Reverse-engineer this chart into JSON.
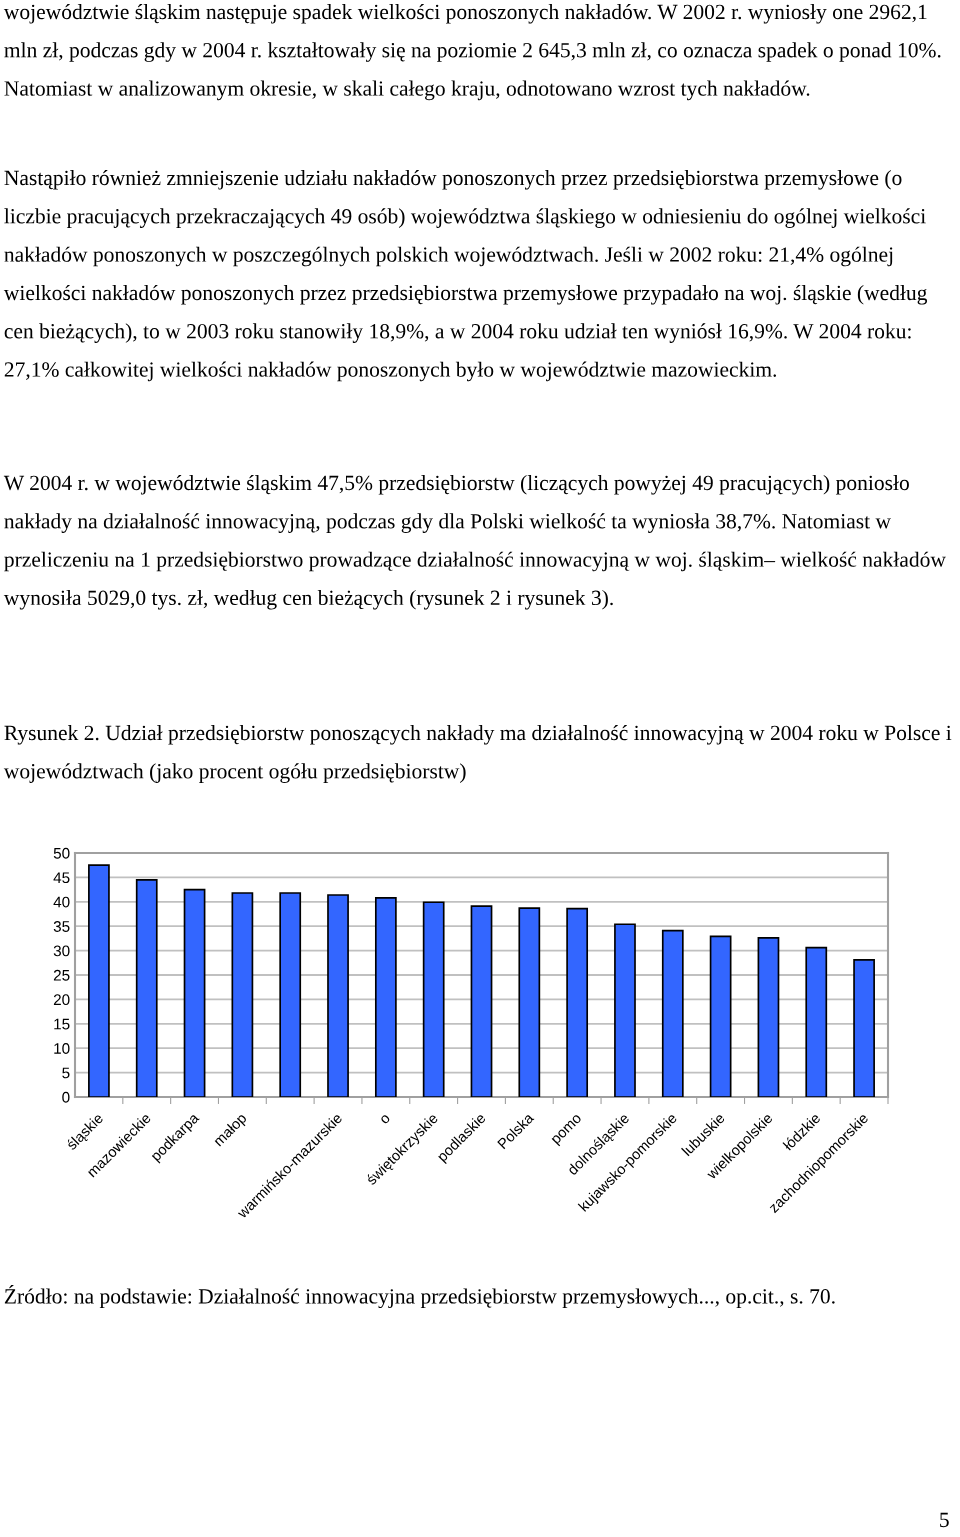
{
  "chart_data": {
    "type": "bar",
    "title": "Rysunek 2. Udział przedsiębiorstw ponoszących nakłady ma działalność innowacyjną w 2004 roku w Polsce i województwach (jako procent ogółu przedsiębiorstw)",
    "categories": [
      "śląskie",
      "mazowieckie",
      "podkarpa",
      "małop",
      null,
      "warmińsko-mazurskie",
      "o",
      "świętokrzyskie",
      "podlaskie",
      "Polska",
      "pomo",
      "dolnośląskie",
      "kujawsko-pomorskie",
      "lubuskie",
      "wielkopolskie",
      "łódzkie",
      "zachodniopomorskie"
    ],
    "values": [
      47.5,
      44.5,
      42.5,
      41.8,
      41.8,
      41.4,
      40.8,
      39.9,
      39.1,
      38.7,
      38.6,
      35.4,
      34.1,
      32.9,
      32.6,
      30.6,
      28.1
    ],
    "color": "#3366ff",
    "ylim": [
      0,
      50
    ],
    "yticks": [
      0,
      5,
      10,
      15,
      20,
      25,
      30,
      35,
      40,
      45,
      50
    ],
    "grid": "y",
    "annotations": [
      "województwie śląskim następuje spadek wielkości ponoszonych nakładów. W 2002 r. wyniosły one 2962,1 mln zł, podczas gdy w 2004 r. kształtowały się na poziomie 2 645,3 mln zł, co oznacza spadek o ponad 10%. Natomiast w analizowanym okresie, w skali całego kraju, odnotowano wzrost tych nakładów.",
      "Nastąpiło również zmniejszenie udziału nakładów ponoszonych przez przedsiębiorstwa przemysłowe (o liczbie pracujących przekraczających 49 osób) województwa śląskiego w odniesieniu do ogólnej wielkości nakładów ponoszonych w poszczególnych polskich województwach. Jeśli w 2002 roku: 21,4% ogólnej wielkości nakładów ponoszonych przez przedsiębiorstwa przemysłowe przypadało na woj. śląskie (według cen bieżących), to w 2003 roku stanowiły 18,9%, a w 2004 roku udział ten wyniósł 16,9%. W 2004 roku: 27,1% całkowitej wielkości nakładów ponoszonych było w województwie mazowieckim.",
      "W 2004 r. w województwie śląskim 47,5% przedsiębiorstw (liczących powyżej 49 pracujących) poniosło nakłady na działalność innowacyjną, podczas gdy dla Polski wielkość ta wyniosła 38,7%. Natomiast w przeliczeniu na 1 przedsiębiorstwo prowadzące działalność innowacyjną w woj. śląskim– wielkość nakładów wynosiła 5029,0 tys. zł, według cen bieżących (rysunek 2 i rysunek 3).",
      "Źródło: na podstawie: Działalność innowacyjna przedsiębiorstw przemysłowych..., op.cit., s. 70.",
      "5"
    ]
  }
}
